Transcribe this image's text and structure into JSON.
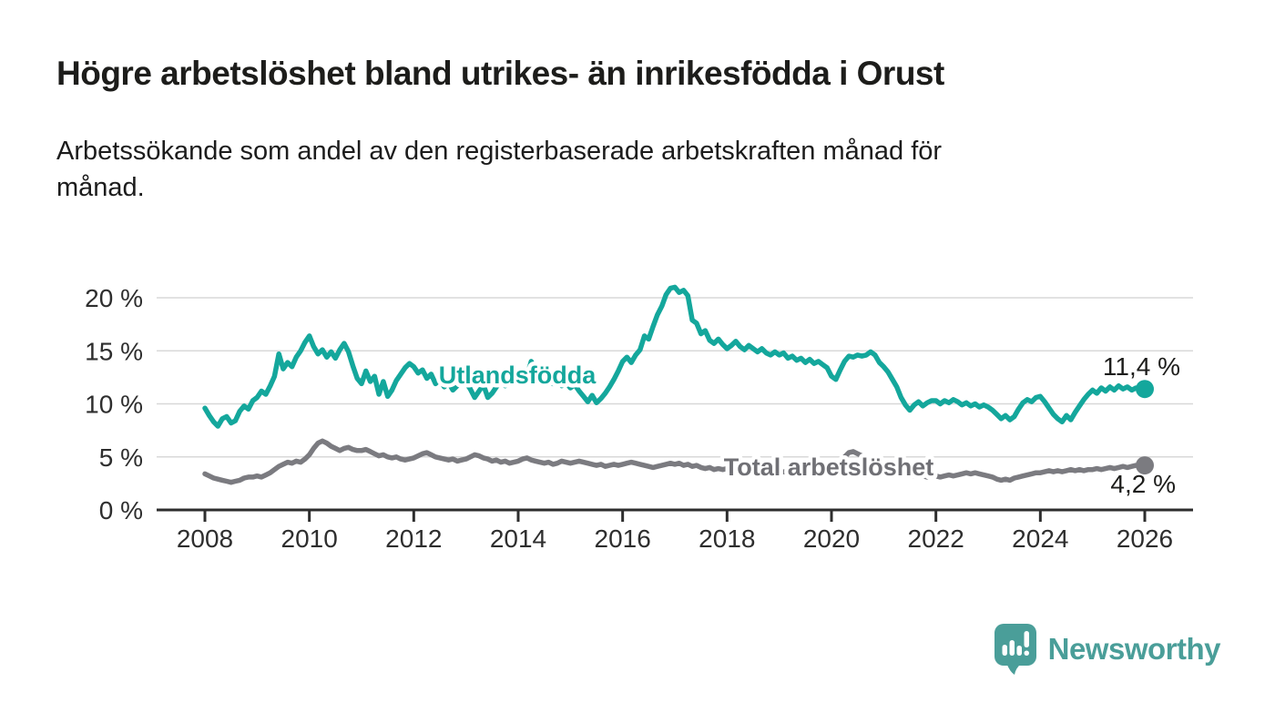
{
  "header": {
    "title": "Högre arbetslöshet bland utrikes- än inrikesfödda i Orust",
    "subtitle_line1": "Arbetssökande som andel av den registerbaserade arbetskraften månad för",
    "subtitle_line2": "månad."
  },
  "footer": {
    "brand": "Newsworthy"
  },
  "colors": {
    "accent_teal": "#14a79c",
    "series_gray": "#7b7b80",
    "label_gray": "#707075",
    "annotation_dark": "#1d1d1b",
    "logo_teal": "#4a9e99",
    "axis": "#2e2e2e",
    "grid": "#d8d8d8",
    "background": "#ffffff"
  },
  "chart_data": {
    "type": "line",
    "title": "Högre arbetslöshet bland utrikes- än inrikesfödda i Orust",
    "subtitle": "Arbetssökande som andel av den registerbaserade arbetskraften månad för månad.",
    "xlabel": "",
    "ylabel": "",
    "interval": "monthly",
    "x_start_year": 2008,
    "x_end_year": 2026,
    "x_tick_labels": [
      "2008",
      "2010",
      "2012",
      "2014",
      "2016",
      "2018",
      "2020",
      "2022",
      "2024",
      "2026"
    ],
    "y_ticks": [
      0,
      5,
      10,
      15,
      20
    ],
    "y_tick_labels": [
      "0 %",
      "5 %",
      "10 %",
      "15 %",
      "20 %"
    ],
    "ylim": [
      0,
      21.5
    ],
    "grid": "horizontal",
    "legend_position": "inline-labels",
    "series": [
      {
        "name": "Utlandsfödda",
        "color": "#14a79c",
        "label_color": "#14a79c",
        "end_value": 11.4,
        "end_value_label": "11,4 %",
        "values": [
          9.6,
          8.9,
          8.3,
          7.9,
          8.6,
          8.8,
          8.2,
          8.4,
          9.3,
          9.8,
          9.5,
          10.3,
          10.6,
          11.2,
          10.9,
          11.7,
          12.6,
          14.7,
          13.3,
          13.9,
          13.5,
          14.4,
          15.0,
          15.8,
          16.4,
          15.4,
          14.7,
          15.1,
          14.4,
          14.9,
          14.3,
          15.1,
          15.7,
          14.9,
          13.6,
          12.4,
          11.9,
          13.1,
          12.1,
          12.6,
          10.9,
          12.1,
          10.7,
          11.3,
          12.2,
          12.8,
          13.4,
          13.8,
          13.5,
          12.9,
          13.2,
          12.4,
          12.8,
          11.9,
          12.3,
          11.6,
          12.0,
          11.3,
          11.7,
          12.0,
          12.0,
          11.4,
          10.6,
          11.2,
          11.8,
          10.6,
          11.0,
          11.6,
          12.1,
          11.7,
          12.3,
          11.9,
          12.4,
          12.0,
          12.6,
          14.0,
          13.2,
          12.7,
          12.2,
          12.5,
          11.9,
          12.2,
          11.7,
          12.0,
          11.5,
          11.8,
          11.2,
          10.7,
          10.2,
          10.8,
          10.1,
          10.5,
          11.0,
          11.6,
          12.3,
          13.1,
          14.0,
          14.4,
          13.9,
          14.6,
          15.1,
          16.4,
          16.1,
          17.3,
          18.4,
          19.2,
          20.3,
          20.9,
          21.0,
          20.5,
          20.7,
          20.2,
          17.9,
          17.6,
          16.6,
          16.9,
          16.0,
          15.7,
          16.1,
          15.6,
          15.2,
          15.5,
          15.9,
          15.4,
          15.1,
          15.5,
          15.2,
          14.9,
          15.2,
          14.8,
          14.6,
          14.9,
          14.6,
          14.8,
          14.3,
          14.5,
          14.1,
          14.3,
          13.9,
          14.2,
          13.8,
          14.0,
          13.7,
          13.4,
          12.6,
          12.3,
          13.2,
          14.0,
          14.5,
          14.4,
          14.6,
          14.5,
          14.6,
          14.9,
          14.6,
          13.9,
          13.5,
          13.0,
          12.3,
          11.6,
          10.6,
          9.9,
          9.4,
          9.9,
          10.2,
          9.8,
          10.1,
          10.3,
          10.3,
          10.0,
          10.3,
          10.1,
          10.4,
          10.2,
          9.9,
          10.1,
          9.8,
          10.0,
          9.7,
          9.9,
          9.7,
          9.4,
          9.0,
          8.6,
          8.9,
          8.5,
          8.8,
          9.5,
          10.1,
          10.4,
          10.2,
          10.6,
          10.7,
          10.2,
          9.6,
          9.0,
          8.6,
          8.3,
          8.9,
          8.5,
          9.2,
          9.8,
          10.4,
          10.9,
          11.3,
          11.0,
          11.5,
          11.2,
          11.6,
          11.3,
          11.7,
          11.4,
          11.6,
          11.3,
          11.5,
          11.4,
          11.4
        ]
      },
      {
        "name": "Total arbetslöshet",
        "color": "#7b7b80",
        "label_color": "#707075",
        "end_value": 4.2,
        "end_value_label": "4,2 %",
        "values": [
          3.4,
          3.2,
          3.0,
          2.9,
          2.8,
          2.7,
          2.6,
          2.7,
          2.8,
          3.0,
          3.1,
          3.1,
          3.2,
          3.1,
          3.3,
          3.5,
          3.8,
          4.1,
          4.3,
          4.5,
          4.4,
          4.6,
          4.5,
          4.8,
          5.2,
          5.8,
          6.3,
          6.5,
          6.3,
          6.0,
          5.8,
          5.6,
          5.8,
          5.9,
          5.7,
          5.6,
          5.6,
          5.7,
          5.5,
          5.3,
          5.1,
          5.2,
          5.0,
          4.9,
          5.0,
          4.8,
          4.7,
          4.8,
          4.9,
          5.1,
          5.3,
          5.4,
          5.2,
          5.0,
          4.9,
          4.8,
          4.7,
          4.8,
          4.6,
          4.7,
          4.8,
          5.0,
          5.2,
          5.1,
          4.9,
          4.8,
          4.6,
          4.7,
          4.5,
          4.6,
          4.4,
          4.5,
          4.6,
          4.8,
          4.9,
          4.7,
          4.6,
          4.5,
          4.4,
          4.5,
          4.3,
          4.4,
          4.6,
          4.5,
          4.4,
          4.5,
          4.6,
          4.5,
          4.4,
          4.3,
          4.2,
          4.3,
          4.1,
          4.2,
          4.3,
          4.2,
          4.3,
          4.4,
          4.5,
          4.4,
          4.3,
          4.2,
          4.1,
          4.0,
          4.1,
          4.2,
          4.3,
          4.4,
          4.3,
          4.4,
          4.2,
          4.3,
          4.1,
          4.2,
          4.0,
          3.9,
          4.0,
          3.8,
          3.9,
          3.8,
          3.9,
          4.0,
          3.9,
          3.8,
          3.7,
          3.8,
          3.6,
          3.7,
          3.5,
          3.6,
          3.5,
          3.6,
          3.5,
          3.6,
          3.5,
          3.4,
          3.5,
          3.4,
          3.3,
          3.4,
          3.3,
          3.4,
          3.5,
          3.6,
          3.7,
          3.9,
          4.4,
          5.0,
          5.4,
          5.5,
          5.3,
          5.1,
          4.9,
          4.7,
          4.4,
          4.1,
          3.9,
          3.8,
          3.7,
          3.6,
          3.5,
          3.4,
          3.3,
          3.2,
          3.3,
          3.2,
          3.1,
          3.2,
          3.2,
          3.1,
          3.2,
          3.3,
          3.2,
          3.3,
          3.4,
          3.5,
          3.4,
          3.5,
          3.4,
          3.3,
          3.2,
          3.1,
          2.9,
          2.8,
          2.9,
          2.8,
          3.0,
          3.1,
          3.2,
          3.3,
          3.4,
          3.5,
          3.5,
          3.6,
          3.7,
          3.6,
          3.7,
          3.6,
          3.7,
          3.8,
          3.7,
          3.8,
          3.7,
          3.8,
          3.8,
          3.9,
          3.8,
          3.9,
          4.0,
          3.9,
          4.0,
          4.1,
          4.0,
          4.1,
          4.2,
          4.2,
          4.2
        ]
      }
    ]
  }
}
